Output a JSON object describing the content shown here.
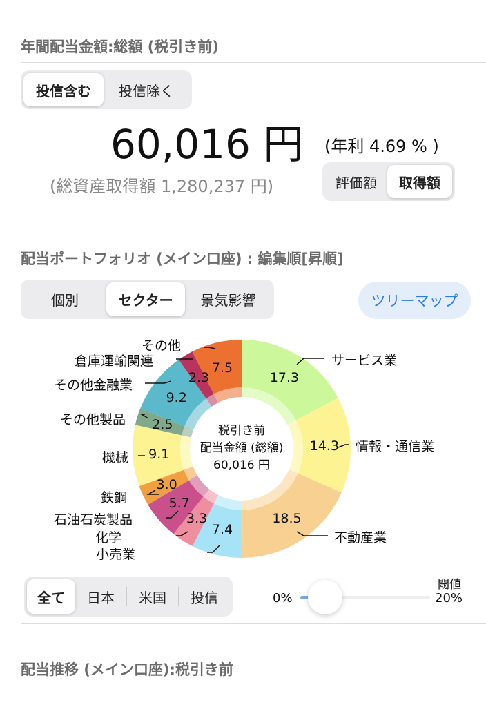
{
  "annual": {
    "title": "年間配当金額:総額 (税引き前)",
    "toggle": [
      "投信含む",
      "投信除く"
    ],
    "toggle_selected": 0,
    "amount": "60,016 円",
    "yield": "(年利 4.69 % )",
    "total_cost": "(総資産取得額 1,280,237 円)",
    "basis": [
      "評価額",
      "取得額"
    ],
    "basis_selected": 1
  },
  "portfolio": {
    "title": "配当ポートフォリオ (メイン口座) : 編集順[昇順]",
    "view": [
      "個別",
      "セクター",
      "景気影響"
    ],
    "view_selected": 1,
    "treemap": "ツリーマップ",
    "center": [
      "税引き前",
      "配当金額 (総額)",
      "60,016 円"
    ],
    "region": [
      "全て",
      "日本",
      "米国",
      "投信"
    ],
    "region_selected": 0,
    "threshold": {
      "label": "閾値",
      "min": "0%",
      "max": "20%",
      "value_percent": 0
    }
  },
  "chart_data": {
    "type": "pie",
    "donut": true,
    "slices": [
      {
        "name": "サービス業",
        "value": 17.3,
        "color": "#ccf79a"
      },
      {
        "name": "情報・通信業",
        "value": 14.3,
        "color": "#fdf393"
      },
      {
        "name": "不動産業",
        "value": 18.5,
        "color": "#f7d092"
      },
      {
        "name": "小売業",
        "value": 7.4,
        "color": "#a6e3f6"
      },
      {
        "name": "化学",
        "value": 3.3,
        "color": "#ee8e9f"
      },
      {
        "name": "石油石炭製品",
        "value": 5.7,
        "color": "#c9508a"
      },
      {
        "name": "鉄鋼",
        "value": 3.0,
        "color": "#f0a040"
      },
      {
        "name": "機械",
        "value": 9.1,
        "color": "#fdf393"
      },
      {
        "name": "その他製品",
        "value": 2.5,
        "color": "#80a88a"
      },
      {
        "name": "その他金融業",
        "value": 9.2,
        "color": "#5bb9cc"
      },
      {
        "name": "倉庫運輸関連",
        "value": 2.3,
        "color": "#b8345e"
      },
      {
        "name": "その他",
        "value": 7.5,
        "color": "#ec7030"
      }
    ]
  },
  "trend": {
    "title": "配当推移 (メイン口座):税引き前"
  }
}
